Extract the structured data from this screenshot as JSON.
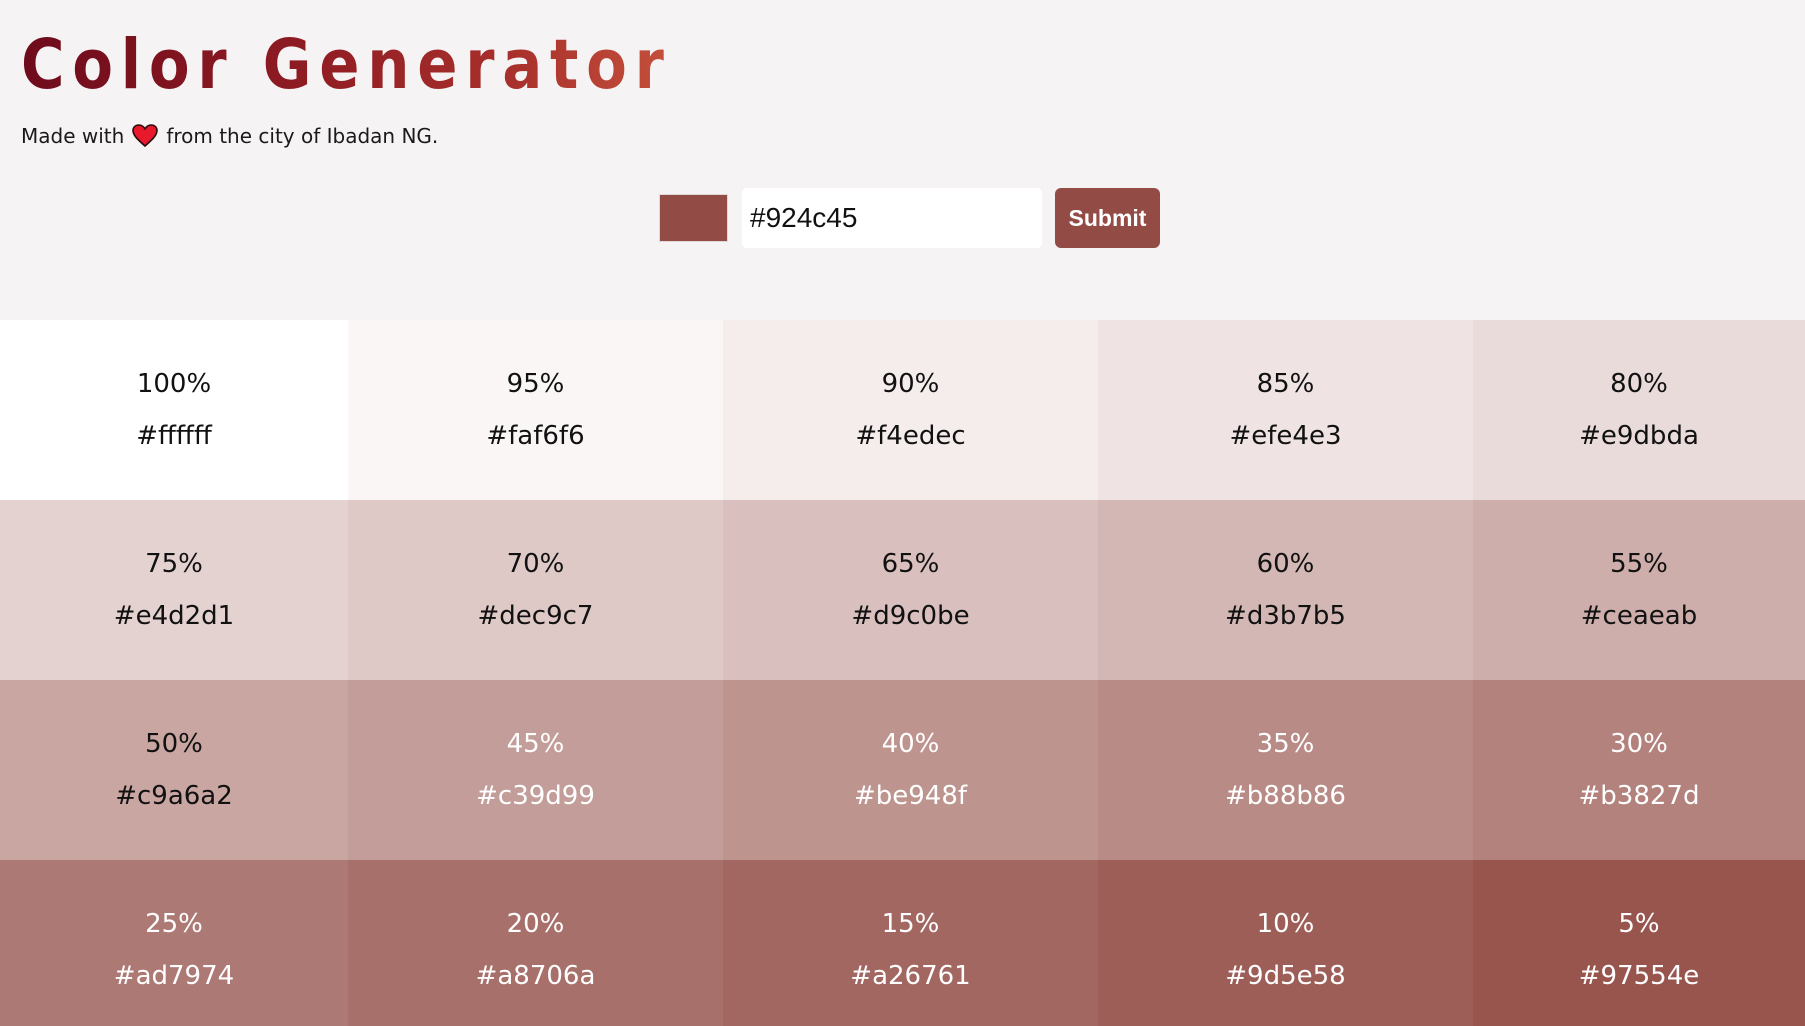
{
  "header": {
    "title": "Color Generator",
    "subtitle_before": "Made with",
    "subtitle_after": "from the city of Ibadan NG.",
    "heart_icon": "heart-icon"
  },
  "form": {
    "color_value": "#924c45",
    "input_value": "#924c45",
    "submit_label": "Submit"
  },
  "colors": {
    "page_background": "#f6f3f4",
    "accent": "#924c45"
  },
  "swatches": [
    {
      "percent": "100%",
      "hex": "#ffffff"
    },
    {
      "percent": "95%",
      "hex": "#faf6f6"
    },
    {
      "percent": "90%",
      "hex": "#f4edec"
    },
    {
      "percent": "85%",
      "hex": "#efe4e3"
    },
    {
      "percent": "80%",
      "hex": "#e9dbda"
    },
    {
      "percent": "75%",
      "hex": "#e4d2d1"
    },
    {
      "percent": "70%",
      "hex": "#dec9c7"
    },
    {
      "percent": "65%",
      "hex": "#d9c0be"
    },
    {
      "percent": "60%",
      "hex": "#d3b7b5"
    },
    {
      "percent": "55%",
      "hex": "#ceaeab"
    },
    {
      "percent": "50%",
      "hex": "#c9a6a2"
    },
    {
      "percent": "45%",
      "hex": "#c39d99"
    },
    {
      "percent": "40%",
      "hex": "#be948f"
    },
    {
      "percent": "35%",
      "hex": "#b88b86"
    },
    {
      "percent": "30%",
      "hex": "#b3827d"
    },
    {
      "percent": "25%",
      "hex": "#ad7974"
    },
    {
      "percent": "20%",
      "hex": "#a8706a"
    },
    {
      "percent": "15%",
      "hex": "#a26761"
    },
    {
      "percent": "10%",
      "hex": "#9d5e58"
    },
    {
      "percent": "5%",
      "hex": "#97554e"
    }
  ]
}
